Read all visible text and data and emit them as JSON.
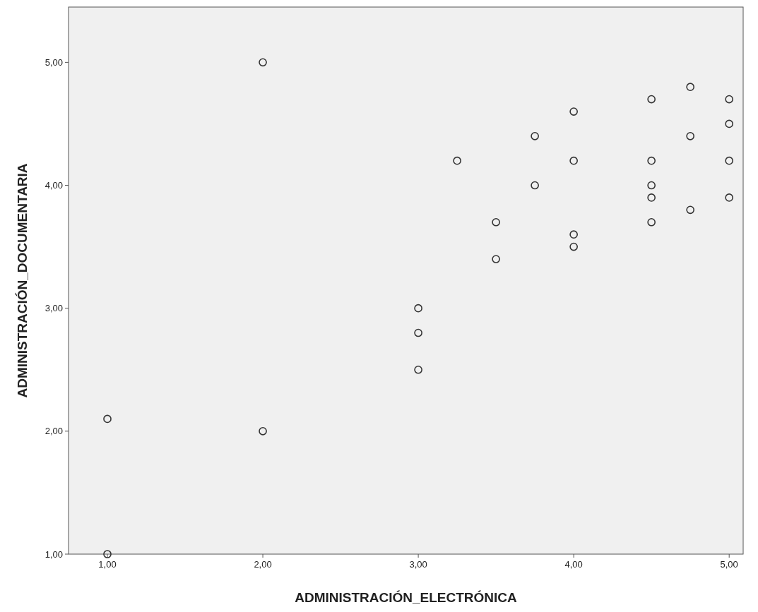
{
  "chart_data": {
    "type": "scatter",
    "xlabel": "ADMINISTRACIÓN_ELECTRÓNICA",
    "ylabel": "ADMINISTRACIÓN_DOCUMENTARIA",
    "xlim": [
      0.75,
      5.09
    ],
    "ylim": [
      1,
      5.45
    ],
    "xticks": [
      {
        "value": 1,
        "label": "1,00"
      },
      {
        "value": 2,
        "label": "2,00"
      },
      {
        "value": 3,
        "label": "3,00"
      },
      {
        "value": 4,
        "label": "4,00"
      },
      {
        "value": 5,
        "label": "5,00"
      }
    ],
    "yticks": [
      {
        "value": 1,
        "label": "1,00"
      },
      {
        "value": 2,
        "label": "2,00"
      },
      {
        "value": 3,
        "label": "3,00"
      },
      {
        "value": 4,
        "label": "4,00"
      },
      {
        "value": 5,
        "label": "5,00"
      }
    ],
    "grid": false,
    "marker": "circle",
    "series": [
      {
        "color": "#333333",
        "x": [
          1,
          1,
          2,
          2,
          3,
          3,
          3,
          3.25,
          3.5,
          3.5,
          3.75,
          3.75,
          4,
          4,
          4,
          4,
          4.5,
          4.5,
          4.5,
          4.5,
          4.5,
          4.75,
          4.75,
          4.75,
          5,
          5,
          5,
          5
        ],
        "values": [
          2.1,
          1,
          5,
          2,
          3,
          2.8,
          2.5,
          4.2,
          3.7,
          3.4,
          4.4,
          4,
          4.6,
          4.2,
          3.6,
          3.5,
          4.7,
          4.2,
          4,
          3.9,
          3.7,
          4.8,
          4.4,
          3.8,
          4.7,
          4.5,
          4.2,
          3.9
        ]
      }
    ]
  }
}
